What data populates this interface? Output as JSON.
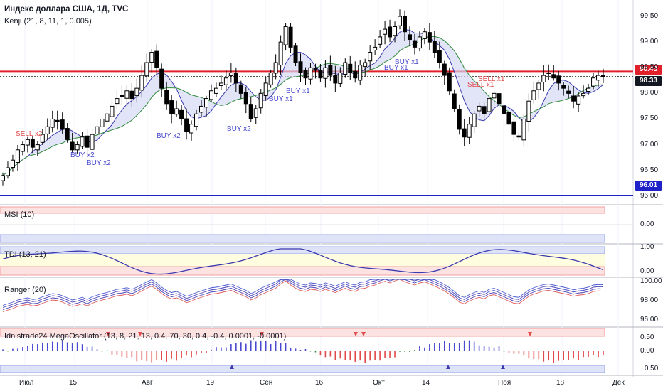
{
  "title": "Индекс доллара США, 1Д, TVC",
  "indicator_line": "Kenji (21, 8, 11, 1, 0.005)",
  "colors": {
    "up": "#ffffff",
    "down": "#000000",
    "candle_border": "#000000",
    "red_line": "#e0202a",
    "blue_line": "#1e22c8",
    "buy_text": "#4a4ad0",
    "sell_text": "#e04a4a"
  },
  "price_axis": {
    "ticks": [
      "99.50",
      "99.00",
      "98.50",
      "98.00",
      "97.50",
      "97.00",
      "96.50",
      "96.00"
    ]
  },
  "price_badges": {
    "red": "98.43",
    "current": "98.33",
    "blue": "96.01"
  },
  "time_axis": {
    "labels": [
      "Июл",
      "15",
      "Авг",
      "19",
      "Сен",
      "16",
      "Окт",
      "14",
      "Ноя",
      "18",
      "Дек"
    ]
  },
  "annotations": [
    {
      "text": "SELL x2",
      "kind": "sell"
    },
    {
      "text": "BUY x2",
      "kind": "buy"
    },
    {
      "text": "BUY x2",
      "kind": "buy"
    },
    {
      "text": "BUY x2",
      "kind": "buy"
    },
    {
      "text": "BUY x2",
      "kind": "buy"
    },
    {
      "text": "BUY x1",
      "kind": "buy"
    },
    {
      "text": "BUY x1",
      "kind": "buy"
    },
    {
      "text": "BUY x1",
      "kind": "buy"
    },
    {
      "text": "BUY x1",
      "kind": "buy"
    },
    {
      "text": "SELL x1",
      "kind": "sell"
    },
    {
      "text": "SELL x1",
      "kind": "sell"
    }
  ],
  "panes": {
    "msi": {
      "title": "MSI (10)",
      "ticks": [
        "0.00"
      ]
    },
    "tdi": {
      "title": "TDI (13, 21)",
      "ticks": [
        "1.00",
        "0.00"
      ]
    },
    "ranger": {
      "title": "Ranger (20)",
      "ticks": [
        "100.00",
        "98.00",
        "96.00"
      ]
    },
    "mega": {
      "title": "Idnistrade24 MegaOscillator (13, 8, 21, 13, 0.4, 70, 30, 0.4, -0.4, 0.0001, -0.0001)",
      "ticks": [
        "0.50",
        "0.00",
        "−0.50"
      ]
    }
  },
  "chart_data": {
    "type": "candlestick",
    "title": "Индекс доллара США, 1Д, TVC",
    "horizontal_levels": [
      98.43,
      96.01
    ],
    "current_price": 98.33,
    "ylim": [
      95.9,
      99.75
    ],
    "x_labels": [
      "Июл",
      "15",
      "Авг",
      "19",
      "Сен",
      "16",
      "Окт",
      "14",
      "Ноя",
      "18",
      "Дек"
    ],
    "close": [
      96.4,
      96.55,
      96.7,
      96.9,
      97.0,
      97.1,
      96.95,
      97.0,
      97.2,
      97.35,
      97.5,
      97.45,
      97.3,
      97.1,
      96.9,
      97.0,
      97.15,
      96.95,
      97.2,
      97.35,
      97.5,
      97.6,
      97.75,
      97.9,
      97.95,
      98.05,
      97.9,
      98.1,
      98.35,
      98.6,
      98.8,
      98.5,
      98.1,
      97.8,
      97.6,
      97.7,
      97.5,
      97.25,
      97.4,
      97.6,
      97.75,
      97.9,
      98.05,
      98.1,
      98.2,
      98.3,
      98.4,
      98.2,
      98.0,
      97.8,
      97.5,
      97.7,
      98.0,
      98.2,
      98.4,
      98.6,
      99.0,
      99.3,
      98.9,
      98.6,
      98.4,
      98.3,
      98.5,
      98.45,
      98.3,
      98.5,
      98.35,
      98.2,
      98.4,
      98.6,
      98.4,
      98.3,
      98.55,
      98.6,
      98.8,
      98.9,
      99.1,
      99.25,
      99.1,
      99.3,
      99.5,
      99.2,
      99.05,
      98.9,
      99.1,
      99.2,
      99.0,
      98.8,
      98.6,
      98.35,
      98.05,
      97.7,
      97.3,
      97.15,
      97.4,
      97.6,
      97.75,
      97.6,
      97.9,
      98.0,
      97.8,
      97.6,
      97.4,
      97.2,
      97.15,
      97.5,
      97.85,
      98.05,
      98.2,
      98.35,
      98.4,
      98.3,
      98.2,
      98.1,
      98.0,
      97.85,
      97.95,
      98.0,
      98.1,
      98.3,
      98.35,
      98.33
    ]
  }
}
